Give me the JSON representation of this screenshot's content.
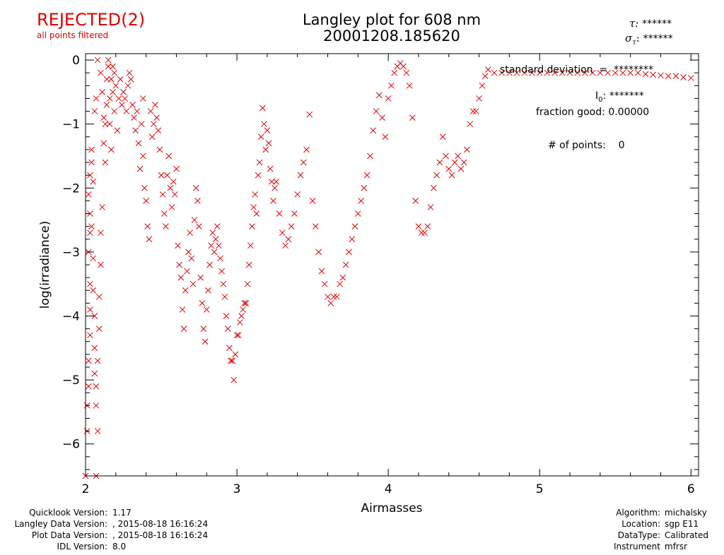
{
  "header": {
    "status": "REJECTED(2)",
    "status_note": "all points filtered",
    "title_line1": "Langley plot for 608 nm",
    "title_line2": "20001208.185620",
    "tau_label": "τ:",
    "tau_value": "******",
    "sigma_label": "σ",
    "sigma_sub": "τ",
    "sigma_value": "******"
  },
  "stats": {
    "std_dev_label": "standard deviation",
    "std_dev_eq": "=",
    "std_dev_value": "********",
    "i0_label": "I",
    "i0_sub": "0",
    "i0_value": "*******",
    "fraction_label": "fraction good:",
    "fraction_value": "0.00000",
    "points_label": "# of points:",
    "points_value": "0"
  },
  "footer": {
    "left": [
      {
        "label": "Quicklook Version:",
        "value": "1.17"
      },
      {
        "label": "Langley Data Version:",
        "value": ", 2015-08-18 16:16:24"
      },
      {
        "label": "Plot Data Version:",
        "value": ", 2015-08-18 16:16:24"
      },
      {
        "label": "IDL Version:",
        "value": "8.0"
      }
    ],
    "right": [
      {
        "label": "Algorithm:",
        "value": "michalsky"
      },
      {
        "label": "Location:",
        "value": "sgp E11"
      },
      {
        "label": "DataType:",
        "value": "Calibrated"
      },
      {
        "label": "Instrument",
        "value": "mfrsr"
      }
    ]
  },
  "colors": {
    "points": "#e00000",
    "axes": "#000000"
  },
  "chart_data": {
    "type": "scatter",
    "title": "Langley plot for 608 nm",
    "xlabel": "Airmasses",
    "ylabel": "log(irradiance)",
    "xlim": [
      2,
      6.05
    ],
    "ylim": [
      -6.5,
      0.1
    ],
    "xticks": [
      "2",
      "3",
      "4",
      "5",
      "6"
    ],
    "yticks": [
      "0",
      "−1",
      "−2",
      "−3",
      "−4",
      "−5",
      "−6"
    ],
    "marker": "x",
    "grid": false,
    "series": [
      {
        "points": [
          [
            2.0,
            -6.5
          ],
          [
            2.01,
            -5.8
          ],
          [
            2.01,
            -5.4
          ],
          [
            2.02,
            -5.1
          ],
          [
            2.02,
            -4.7
          ],
          [
            2.03,
            -4.3
          ],
          [
            2.03,
            -3.9
          ],
          [
            2.03,
            -3.5
          ],
          [
            2.02,
            -3.0
          ],
          [
            2.03,
            -2.7
          ],
          [
            2.03,
            -2.4
          ],
          [
            2.02,
            -2.1
          ],
          [
            2.03,
            -1.8
          ],
          [
            2.04,
            -1.6
          ],
          [
            2.04,
            -1.4
          ],
          [
            2.05,
            -1.9
          ],
          [
            2.04,
            -2.6
          ],
          [
            2.05,
            -3.1
          ],
          [
            2.05,
            -3.6
          ],
          [
            2.06,
            -4.0
          ],
          [
            2.06,
            -4.5
          ],
          [
            2.06,
            -4.9
          ],
          [
            2.07,
            -5.1
          ],
          [
            2.07,
            -5.4
          ],
          [
            2.08,
            -5.8
          ],
          [
            2.07,
            -6.5
          ],
          [
            2.08,
            -4.7
          ],
          [
            2.09,
            -4.2
          ],
          [
            2.09,
            -3.7
          ],
          [
            2.1,
            -3.2
          ],
          [
            2.1,
            -2.7
          ],
          [
            2.11,
            -2.3
          ],
          [
            2.06,
            -0.8
          ],
          [
            2.07,
            -0.6
          ],
          [
            2.08,
            0.0
          ],
          [
            2.1,
            -0.2
          ],
          [
            2.11,
            -0.5
          ],
          [
            2.12,
            -0.9
          ],
          [
            2.12,
            -1.3
          ],
          [
            2.13,
            -1.6
          ],
          [
            2.13,
            -1.0
          ],
          [
            2.14,
            -0.7
          ],
          [
            2.14,
            -0.3
          ],
          [
            2.15,
            0.0
          ],
          [
            2.15,
            -0.1
          ],
          [
            2.16,
            -0.6
          ],
          [
            2.16,
            -1.0
          ],
          [
            2.17,
            -1.4
          ],
          [
            2.17,
            -0.3
          ],
          [
            2.18,
            -0.1
          ],
          [
            2.18,
            -0.5
          ],
          [
            2.19,
            -0.2
          ],
          [
            2.19,
            -0.8
          ],
          [
            2.2,
            -0.4
          ],
          [
            2.21,
            -1.1
          ],
          [
            2.22,
            -0.6
          ],
          [
            2.23,
            -0.3
          ],
          [
            2.24,
            -0.7
          ],
          [
            2.25,
            -0.5
          ],
          [
            2.26,
            -0.6
          ],
          [
            2.27,
            -0.8
          ],
          [
            2.28,
            -0.4
          ],
          [
            2.29,
            -0.2
          ],
          [
            2.3,
            -0.3
          ],
          [
            2.31,
            -0.7
          ],
          [
            2.32,
            -0.9
          ],
          [
            2.33,
            -1.1
          ],
          [
            2.34,
            -0.8
          ],
          [
            2.35,
            -1.3
          ],
          [
            2.36,
            -1.7
          ],
          [
            2.37,
            -1.0
          ],
          [
            2.38,
            -0.6
          ],
          [
            2.38,
            -1.5
          ],
          [
            2.39,
            -2.0
          ],
          [
            2.4,
            -2.2
          ],
          [
            2.41,
            -2.6
          ],
          [
            2.42,
            -2.8
          ],
          [
            2.43,
            -0.8
          ],
          [
            2.44,
            -1.2
          ],
          [
            2.45,
            -1.0
          ],
          [
            2.46,
            -0.7
          ],
          [
            2.47,
            -0.9
          ],
          [
            2.48,
            -1.1
          ],
          [
            2.49,
            -1.4
          ],
          [
            2.5,
            -1.8
          ],
          [
            2.51,
            -2.1
          ],
          [
            2.52,
            -2.4
          ],
          [
            2.53,
            -2.6
          ],
          [
            2.54,
            -1.8
          ],
          [
            2.55,
            -1.5
          ],
          [
            2.56,
            -2.0
          ],
          [
            2.57,
            -2.3
          ],
          [
            2.58,
            -1.9
          ],
          [
            2.59,
            -2.1
          ],
          [
            2.6,
            -1.7
          ],
          [
            2.61,
            -2.9
          ],
          [
            2.62,
            -3.2
          ],
          [
            2.63,
            -3.4
          ],
          [
            2.64,
            -3.9
          ],
          [
            2.65,
            -4.2
          ],
          [
            2.66,
            -3.6
          ],
          [
            2.67,
            -3.3
          ],
          [
            2.68,
            -3.0
          ],
          [
            2.69,
            -2.7
          ],
          [
            2.7,
            -3.1
          ],
          [
            2.71,
            -3.5
          ],
          [
            2.72,
            -2.5
          ],
          [
            2.73,
            -2.0
          ],
          [
            2.74,
            -2.2
          ],
          [
            2.75,
            -2.6
          ],
          [
            2.76,
            -3.4
          ],
          [
            2.77,
            -3.8
          ],
          [
            2.78,
            -4.2
          ],
          [
            2.79,
            -4.4
          ],
          [
            2.8,
            -3.9
          ],
          [
            2.81,
            -3.6
          ],
          [
            2.82,
            -3.2
          ],
          [
            2.83,
            -2.9
          ],
          [
            2.84,
            -2.7
          ],
          [
            2.85,
            -3.0
          ],
          [
            2.86,
            -2.8
          ],
          [
            2.87,
            -2.6
          ],
          [
            2.88,
            -2.9
          ],
          [
            2.89,
            -3.1
          ],
          [
            2.9,
            -3.3
          ],
          [
            2.91,
            -3.5
          ],
          [
            2.92,
            -3.7
          ],
          [
            2.93,
            -4.0
          ],
          [
            2.94,
            -4.2
          ],
          [
            2.95,
            -4.5
          ],
          [
            2.96,
            -4.7
          ],
          [
            2.97,
            -4.7
          ],
          [
            2.98,
            -5.0
          ],
          [
            2.99,
            -4.6
          ],
          [
            3.0,
            -4.3
          ],
          [
            3.01,
            -4.3
          ],
          [
            3.02,
            -4.1
          ],
          [
            3.03,
            -4.0
          ],
          [
            3.04,
            -3.9
          ],
          [
            3.05,
            -3.8
          ],
          [
            3.06,
            -3.8
          ],
          [
            3.07,
            -3.5
          ],
          [
            3.08,
            -3.2
          ],
          [
            3.09,
            -2.9
          ],
          [
            3.1,
            -2.6
          ],
          [
            3.11,
            -2.3
          ],
          [
            3.12,
            -2.1
          ],
          [
            3.13,
            -2.4
          ],
          [
            3.14,
            -1.8
          ],
          [
            3.15,
            -1.6
          ],
          [
            3.16,
            -1.2
          ],
          [
            3.17,
            -0.75
          ],
          [
            3.18,
            -1.0
          ],
          [
            3.19,
            -1.4
          ],
          [
            3.2,
            -1.1
          ],
          [
            3.21,
            -1.3
          ],
          [
            3.22,
            -1.7
          ],
          [
            3.23,
            -1.9
          ],
          [
            3.24,
            -2.2
          ],
          [
            3.25,
            -2.0
          ],
          [
            3.26,
            -1.9
          ],
          [
            3.28,
            -2.4
          ],
          [
            3.3,
            -2.7
          ],
          [
            3.32,
            -2.9
          ],
          [
            3.34,
            -2.8
          ],
          [
            3.36,
            -2.6
          ],
          [
            3.38,
            -2.4
          ],
          [
            3.4,
            -2.1
          ],
          [
            3.42,
            -1.8
          ],
          [
            3.44,
            -1.6
          ],
          [
            3.46,
            -1.4
          ],
          [
            3.48,
            -0.85
          ],
          [
            3.5,
            -2.2
          ],
          [
            3.52,
            -2.6
          ],
          [
            3.54,
            -3.0
          ],
          [
            3.56,
            -3.3
          ],
          [
            3.58,
            -3.5
          ],
          [
            3.6,
            -3.7
          ],
          [
            3.62,
            -3.8
          ],
          [
            3.64,
            -3.7
          ],
          [
            3.66,
            -3.7
          ],
          [
            3.68,
            -3.5
          ],
          [
            3.7,
            -3.4
          ],
          [
            3.72,
            -3.2
          ],
          [
            3.74,
            -3.0
          ],
          [
            3.76,
            -2.8
          ],
          [
            3.78,
            -2.6
          ],
          [
            3.8,
            -2.4
          ],
          [
            3.82,
            -2.2
          ],
          [
            3.84,
            -2.0
          ],
          [
            3.86,
            -1.8
          ],
          [
            3.88,
            -1.5
          ],
          [
            3.9,
            -1.1
          ],
          [
            3.92,
            -0.8
          ],
          [
            3.94,
            -0.55
          ],
          [
            3.96,
            -0.9
          ],
          [
            3.98,
            -1.2
          ],
          [
            4.0,
            -0.6
          ],
          [
            4.02,
            -0.4
          ],
          [
            4.04,
            -0.2
          ],
          [
            4.06,
            -0.1
          ],
          [
            4.08,
            -0.05
          ],
          [
            4.1,
            -0.1
          ],
          [
            4.12,
            -0.2
          ],
          [
            4.14,
            -0.4
          ],
          [
            4.16,
            -0.9
          ],
          [
            4.18,
            -2.2
          ],
          [
            4.2,
            -2.6
          ],
          [
            4.22,
            -2.7
          ],
          [
            4.24,
            -2.7
          ],
          [
            4.26,
            -2.6
          ],
          [
            4.28,
            -2.3
          ],
          [
            4.3,
            -2.0
          ],
          [
            4.32,
            -1.8
          ],
          [
            4.34,
            -1.6
          ],
          [
            4.36,
            -1.2
          ],
          [
            4.38,
            -1.5
          ],
          [
            4.4,
            -1.7
          ],
          [
            4.42,
            -1.8
          ],
          [
            4.44,
            -1.6
          ],
          [
            4.46,
            -1.5
          ],
          [
            4.48,
            -1.7
          ],
          [
            4.5,
            -1.6
          ],
          [
            4.52,
            -1.4
          ],
          [
            4.54,
            -1.0
          ],
          [
            4.56,
            -0.8
          ],
          [
            4.58,
            -0.8
          ],
          [
            4.6,
            -0.6
          ],
          [
            4.62,
            -0.4
          ],
          [
            4.64,
            -0.25
          ],
          [
            4.66,
            -0.15
          ],
          [
            4.7,
            -0.2
          ],
          [
            4.75,
            -0.2
          ],
          [
            4.8,
            -0.2
          ],
          [
            4.85,
            -0.2
          ],
          [
            4.9,
            -0.2
          ],
          [
            4.95,
            -0.2
          ],
          [
            5.0,
            -0.2
          ],
          [
            5.05,
            -0.2
          ],
          [
            5.1,
            -0.2
          ],
          [
            5.15,
            -0.2
          ],
          [
            5.2,
            -0.2
          ],
          [
            5.25,
            -0.2
          ],
          [
            5.3,
            -0.2
          ],
          [
            5.35,
            -0.2
          ],
          [
            5.4,
            -0.2
          ],
          [
            5.45,
            -0.2
          ],
          [
            5.5,
            -0.2
          ],
          [
            5.55,
            -0.2
          ],
          [
            5.6,
            -0.2
          ],
          [
            5.65,
            -0.2
          ],
          [
            5.7,
            -0.22
          ],
          [
            5.75,
            -0.23
          ],
          [
            5.8,
            -0.24
          ],
          [
            5.85,
            -0.25
          ],
          [
            5.9,
            -0.25
          ],
          [
            5.95,
            -0.27
          ],
          [
            6.0,
            -0.28
          ]
        ]
      }
    ]
  }
}
